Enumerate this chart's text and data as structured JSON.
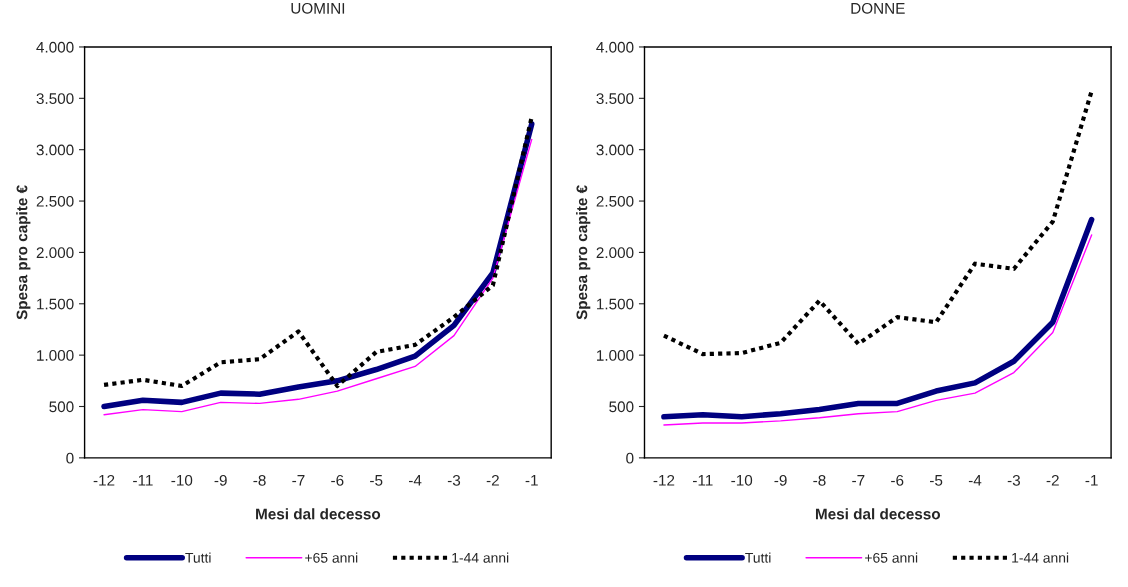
{
  "chart_data": [
    {
      "type": "line",
      "title": "UOMINI",
      "xlabel": "Mesi dal decesso",
      "ylabel": "Spesa pro capite €",
      "categories": [
        "-12",
        "-11",
        "-10",
        "-9",
        "-8",
        "-7",
        "-6",
        "-5",
        "-4",
        "-3",
        "-2",
        "-1"
      ],
      "ylim": [
        0,
        4000
      ],
      "yticks": [
        0,
        500,
        {
          "value": 1000,
          "label": "1.000"
        },
        {
          "value": 1500,
          "label": "1.500"
        },
        {
          "value": 2000,
          "label": "2.000"
        },
        {
          "value": 2500,
          "label": "2.500"
        },
        {
          "value": 3000,
          "label": "3.000"
        },
        {
          "value": 3500,
          "label": "3.500"
        },
        {
          "value": 4000,
          "label": "4.000"
        }
      ],
      "grid": false,
      "legend": "bottom",
      "series": [
        {
          "name": "Tutti",
          "color": "#000080",
          "line_style": "solid",
          "values": [
            500,
            560,
            540,
            630,
            620,
            690,
            750,
            860,
            990,
            1290,
            1800,
            3250
          ]
        },
        {
          "name": "+65 anni",
          "color": "#ff00ff",
          "line_style": "solid",
          "values": [
            420,
            470,
            450,
            540,
            530,
            570,
            650,
            770,
            890,
            1190,
            1750,
            3100
          ]
        },
        {
          "name": "1-44 anni",
          "color": "#000000",
          "line_style": "dashed",
          "values": [
            710,
            760,
            700,
            930,
            960,
            1230,
            700,
            1030,
            1100,
            1370,
            1680,
            3320
          ]
        }
      ]
    },
    {
      "type": "line",
      "title": "DONNE",
      "xlabel": "Mesi dal decesso",
      "ylabel": "Spesa pro capite €",
      "categories": [
        "-12",
        "-11",
        "-10",
        "-9",
        "-8",
        "-7",
        "-6",
        "-5",
        "-4",
        "-3",
        "-2",
        "-1"
      ],
      "ylim": [
        0,
        4000
      ],
      "yticks": [
        0,
        500,
        {
          "value": 1000,
          "label": "1.000"
        },
        {
          "value": 1500,
          "label": "1.500"
        },
        {
          "value": 2000,
          "label": "2.000"
        },
        {
          "value": 2500,
          "label": "2.500"
        },
        {
          "value": 3000,
          "label": "3.000"
        },
        {
          "value": 3500,
          "label": "3.500"
        },
        {
          "value": 4000,
          "label": "4.000"
        }
      ],
      "grid": false,
      "legend": "bottom",
      "series": [
        {
          "name": "Tutti",
          "color": "#000080",
          "line_style": "solid",
          "values": [
            400,
            420,
            400,
            430,
            470,
            530,
            530,
            650,
            730,
            940,
            1320,
            2320
          ]
        },
        {
          "name": "+65 anni",
          "color": "#ff00ff",
          "line_style": "solid",
          "values": [
            320,
            340,
            340,
            360,
            390,
            430,
            450,
            560,
            630,
            830,
            1220,
            2170
          ]
        },
        {
          "name": "1-44 anni",
          "color": "#000000",
          "line_style": "dashed",
          "values": [
            1190,
            1010,
            1020,
            1120,
            1530,
            1110,
            1370,
            1320,
            1890,
            1840,
            2300,
            3570
          ]
        }
      ]
    }
  ]
}
